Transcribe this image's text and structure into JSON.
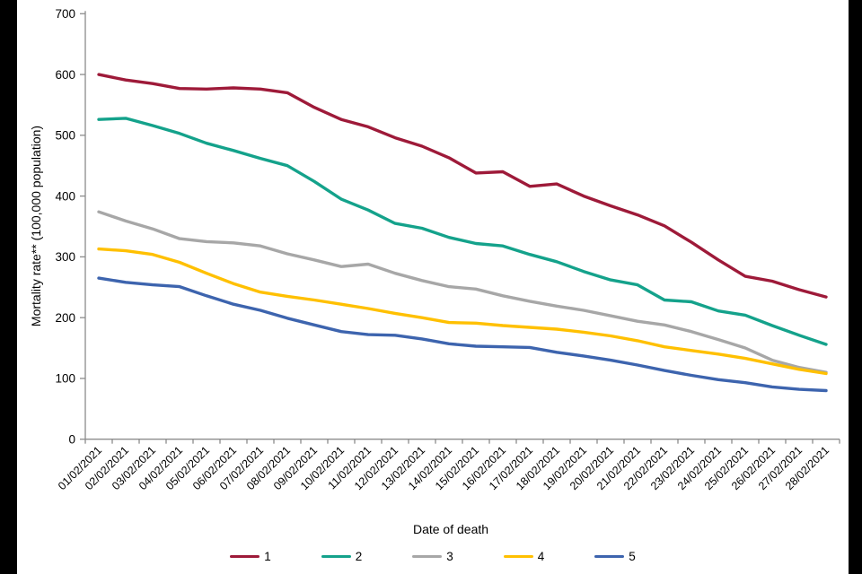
{
  "page": {
    "background": "#ffffff",
    "side_bar_color": "#000000"
  },
  "chart_data": {
    "type": "line",
    "title": "",
    "xlabel": "Date of death",
    "ylabel": "Mortality rate** (100,000 population)",
    "ylim": [
      0,
      700
    ],
    "yticks": [
      0,
      100,
      200,
      300,
      400,
      500,
      600,
      700
    ],
    "grid": false,
    "legend_position": "bottom",
    "x_tick_rotation": 45,
    "axis_color": "#8C8C8C",
    "text_color": "#000000",
    "categories": [
      "01/02/2021",
      "02/02/2021",
      "03/02/2021",
      "04/02/2021",
      "05/02/2021",
      "06/02/2021",
      "07/02/2021",
      "08/02/2021",
      "09/02/2021",
      "10/02/2021",
      "11/02/2021",
      "12/02/2021",
      "13/02/2021",
      "14/02/2021",
      "15/02/2021",
      "16/02/2021",
      "17/02/2021",
      "18/02/2021",
      "19/02/2021",
      "20/02/2021",
      "21/02/2021",
      "22/02/2021",
      "23/02/2021",
      "24/02/2021",
      "25/02/2021",
      "26/02/2021",
      "27/02/2021",
      "28/02/2021"
    ],
    "series": [
      {
        "name": "1",
        "color": "#9E1A39",
        "values": [
          600,
          591,
          585,
          577,
          576,
          578,
          576,
          570,
          546,
          526,
          514,
          496,
          482,
          463,
          438,
          440,
          416,
          420,
          400,
          384,
          369,
          351,
          324,
          295,
          268,
          260,
          246,
          234
        ]
      },
      {
        "name": "2",
        "color": "#14A28B",
        "values": [
          526,
          528,
          516,
          503,
          487,
          475,
          462,
          450,
          424,
          395,
          377,
          355,
          347,
          332,
          322,
          318,
          304,
          292,
          276,
          262,
          254,
          229,
          226,
          211,
          204,
          187,
          171,
          156
        ]
      },
      {
        "name": "3",
        "color": "#A7A7A7",
        "values": [
          374,
          359,
          346,
          330,
          325,
          323,
          318,
          305,
          295,
          284,
          288,
          273,
          261,
          251,
          247,
          236,
          227,
          219,
          212,
          203,
          194,
          188,
          177,
          164,
          150,
          130,
          118,
          110
        ]
      },
      {
        "name": "4",
        "color": "#FFC000",
        "values": [
          313,
          310,
          304,
          291,
          273,
          256,
          242,
          235,
          229,
          222,
          215,
          207,
          200,
          192,
          191,
          187,
          184,
          181,
          176,
          170,
          162,
          152,
          146,
          140,
          133,
          124,
          115,
          108
        ]
      },
      {
        "name": "5",
        "color": "#3D64AE",
        "values": [
          265,
          258,
          254,
          251,
          236,
          222,
          212,
          199,
          188,
          177,
          172,
          171,
          165,
          157,
          153,
          152,
          151,
          143,
          137,
          130,
          122,
          113,
          105,
          98,
          93,
          86,
          82,
          80
        ]
      }
    ]
  }
}
